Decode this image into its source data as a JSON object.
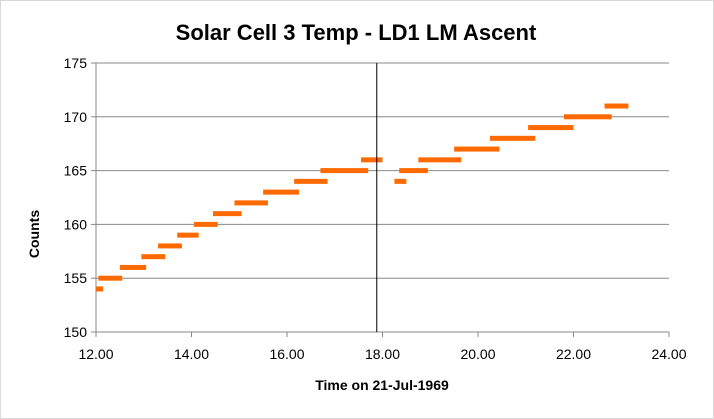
{
  "chart_data": {
    "type": "scatter",
    "title": "Solar Cell 3 Temp - LD1 LM Ascent",
    "xlabel": "Time on 21-Jul-1969",
    "ylabel": "Counts",
    "xlim": [
      12,
      24
    ],
    "ylim": [
      150,
      175
    ],
    "xticks": [
      12,
      14,
      16,
      18,
      20,
      22,
      24
    ],
    "xtick_labels": [
      "12.00",
      "14.00",
      "16.00",
      "18.00",
      "20.00",
      "22.00",
      "24.00"
    ],
    "yticks": [
      150,
      155,
      160,
      165,
      170,
      175
    ],
    "ytick_labels": [
      "150",
      "155",
      "160",
      "165",
      "170",
      "175"
    ],
    "grid": {
      "y": true,
      "x": false
    },
    "legend": "none",
    "marker_color": "#ff6a00",
    "vertical_line": {
      "x": 17.88,
      "color": "#000000"
    },
    "series": [
      {
        "segments": [
          {
            "x_start": 12.0,
            "x_end": 12.15,
            "y": 154
          },
          {
            "x_start": 12.05,
            "x_end": 12.55,
            "y": 155
          },
          {
            "x_start": 12.5,
            "x_end": 13.05,
            "y": 156
          },
          {
            "x_start": 12.95,
            "x_end": 13.45,
            "y": 157
          },
          {
            "x_start": 13.3,
            "x_end": 13.8,
            "y": 158
          },
          {
            "x_start": 13.7,
            "x_end": 14.15,
            "y": 159
          },
          {
            "x_start": 14.05,
            "x_end": 14.55,
            "y": 160
          },
          {
            "x_start": 14.45,
            "x_end": 15.05,
            "y": 161
          },
          {
            "x_start": 14.9,
            "x_end": 15.6,
            "y": 162
          },
          {
            "x_start": 15.5,
            "x_end": 16.25,
            "y": 163
          },
          {
            "x_start": 16.15,
            "x_end": 16.85,
            "y": 164
          },
          {
            "x_start": 16.7,
            "x_end": 17.7,
            "y": 165
          },
          {
            "x_start": 17.55,
            "x_end": 18.0,
            "y": 166
          },
          {
            "x_start": 18.25,
            "x_end": 18.5,
            "y": 164
          },
          {
            "x_start": 18.35,
            "x_end": 18.95,
            "y": 165
          },
          {
            "x_start": 18.75,
            "x_end": 19.65,
            "y": 166
          },
          {
            "x_start": 19.5,
            "x_end": 20.45,
            "y": 167
          },
          {
            "x_start": 20.25,
            "x_end": 21.2,
            "y": 168
          },
          {
            "x_start": 21.05,
            "x_end": 22.0,
            "y": 169
          },
          {
            "x_start": 21.8,
            "x_end": 22.8,
            "y": 170
          },
          {
            "x_start": 22.65,
            "x_end": 23.15,
            "y": 171
          }
        ]
      }
    ]
  }
}
